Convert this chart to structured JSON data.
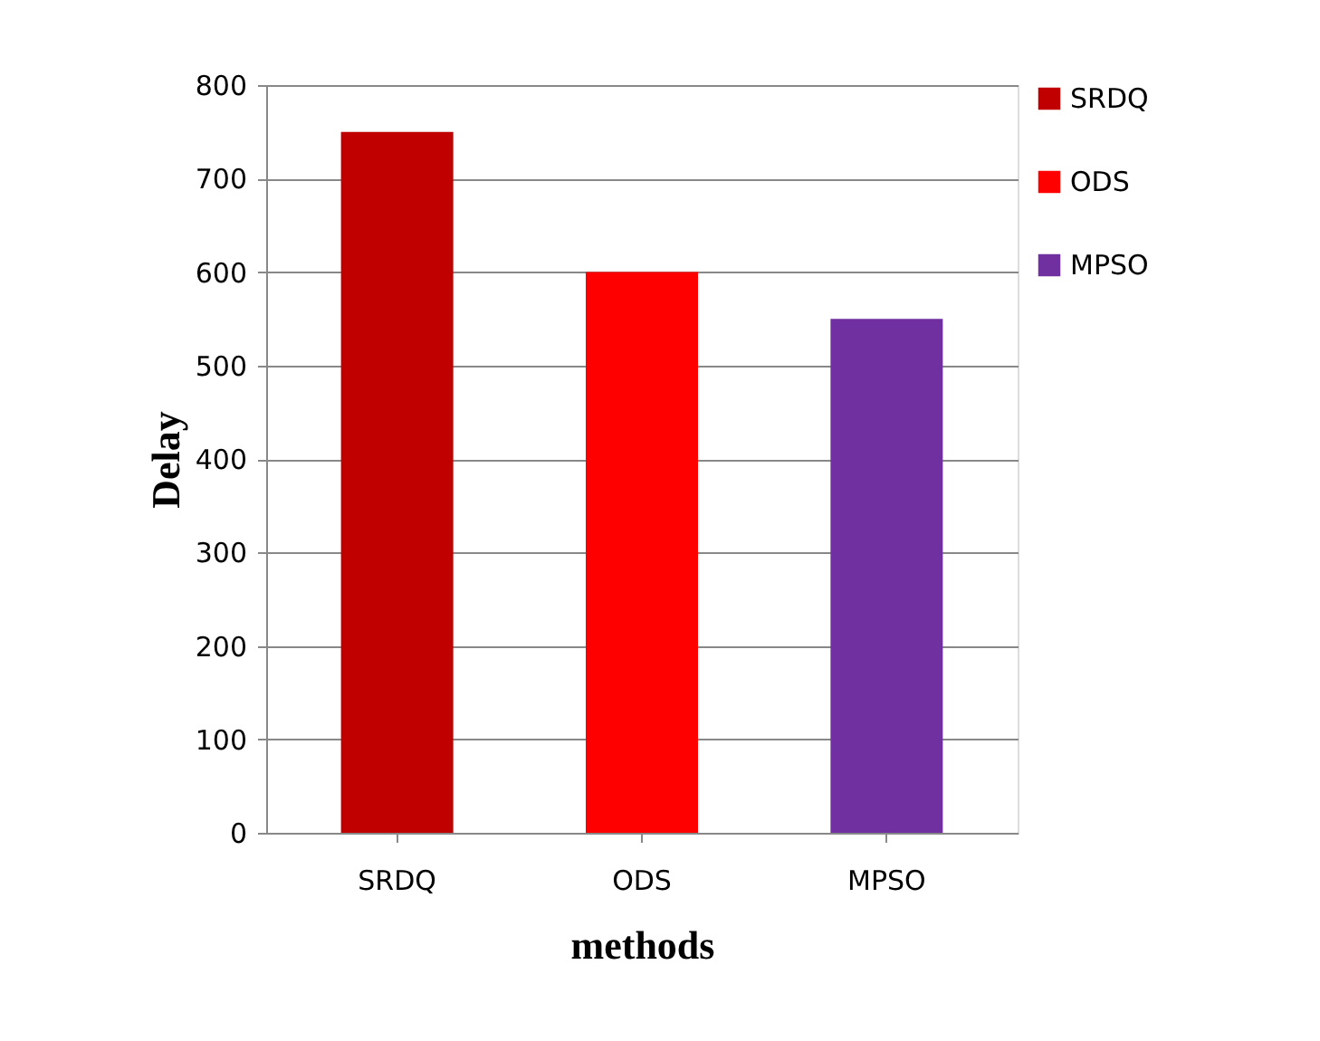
{
  "chart_data": {
    "type": "bar",
    "xlabel": "methods",
    "ylabel": "Delay",
    "categories": [
      "SRDQ",
      "ODS",
      "MPSO"
    ],
    "series": [
      {
        "name": "SRDQ",
        "color": "#c00000",
        "values": [
          750,
          null,
          null
        ]
      },
      {
        "name": "ODS",
        "color": "#ff0000",
        "values": [
          null,
          600,
          null
        ]
      },
      {
        "name": "MPSO",
        "color": "#7030a0",
        "values": [
          null,
          null,
          550
        ]
      }
    ],
    "ylim": [
      0,
      800
    ],
    "yticks": [
      0,
      100,
      200,
      300,
      400,
      500,
      600,
      700,
      800
    ],
    "grid": "y",
    "legend": "right"
  }
}
